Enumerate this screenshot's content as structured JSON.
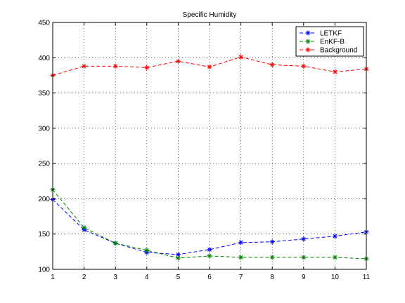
{
  "chart_data": {
    "type": "line",
    "title": "Specific Humidity",
    "xlabel": "",
    "ylabel": "",
    "xlim": [
      1,
      11
    ],
    "ylim": [
      100,
      450
    ],
    "x": [
      1,
      2,
      3,
      4,
      5,
      6,
      7,
      8,
      9,
      10,
      11
    ],
    "xticks": [
      "1",
      "2",
      "3",
      "4",
      "5",
      "6",
      "7",
      "8",
      "9",
      "10",
      "11"
    ],
    "yticks": [
      "100",
      "150",
      "200",
      "250",
      "300",
      "350",
      "400",
      "450"
    ],
    "grid": true,
    "legend_position": "top-right",
    "series": [
      {
        "name": "LETKF",
        "color": "#0000ff",
        "marker": "asterisk",
        "line": "dashed",
        "values": [
          199,
          156,
          137,
          124,
          121,
          128,
          138,
          139,
          143,
          147,
          153
        ]
      },
      {
        "name": "EnKF-B",
        "color": "#008000",
        "marker": "asterisk",
        "line": "dashed",
        "values": [
          213,
          159,
          137,
          127,
          116,
          119,
          117,
          117,
          117,
          117,
          115
        ]
      },
      {
        "name": "Background",
        "color": "#ff0000",
        "marker": "asterisk",
        "line": "dashed",
        "values": [
          375,
          388,
          388,
          386,
          395,
          387,
          401,
          390,
          388,
          380,
          384
        ]
      }
    ]
  }
}
